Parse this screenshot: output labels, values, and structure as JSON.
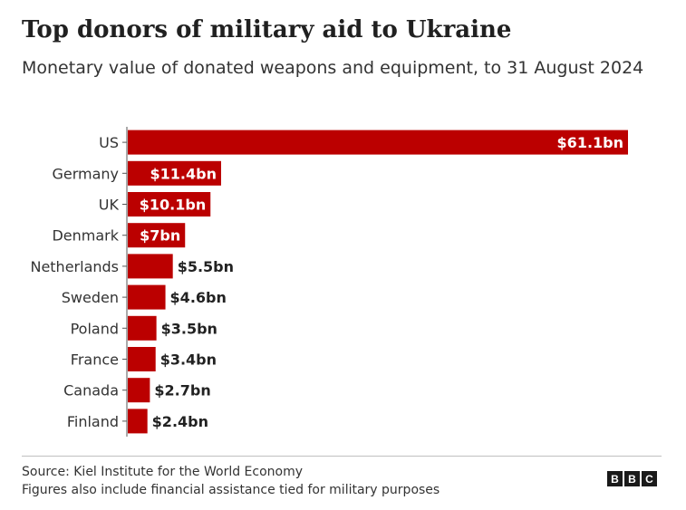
{
  "header": {
    "title": "Top donors of military aid to Ukraine",
    "subtitle": "Monetary value of donated weapons and equipment, to 31 August 2024"
  },
  "footer": {
    "source": "Source: Kiel Institute for the World Economy",
    "note": "Figures also include financial assistance tied for military purposes",
    "logo_letters": [
      "B",
      "B",
      "C"
    ]
  },
  "colors": {
    "bar": "#bb0000",
    "axis": "#555555",
    "label_inside": "#ffffff",
    "label_outside": "#222222"
  },
  "chart_data": {
    "type": "bar",
    "orientation": "horizontal",
    "title": "Top donors of military aid to Ukraine",
    "subtitle": "Monetary value of donated weapons and equipment, to 31 August 2024",
    "xlabel": "",
    "ylabel": "",
    "unit": "$bn",
    "xlim": [
      0,
      61.1
    ],
    "categories": [
      "US",
      "Germany",
      "UK",
      "Denmark",
      "Netherlands",
      "Sweden",
      "Poland",
      "France",
      "Canada",
      "Finland"
    ],
    "values": [
      61.1,
      11.4,
      10.1,
      7,
      5.5,
      4.6,
      3.5,
      3.4,
      2.7,
      2.4
    ],
    "data_labels": [
      "$61.1bn",
      "$11.4bn",
      "$10.1bn",
      "$7bn",
      "$5.5bn",
      "$4.6bn",
      "$3.5bn",
      "$3.4bn",
      "$2.7bn",
      "$2.4bn"
    ]
  }
}
